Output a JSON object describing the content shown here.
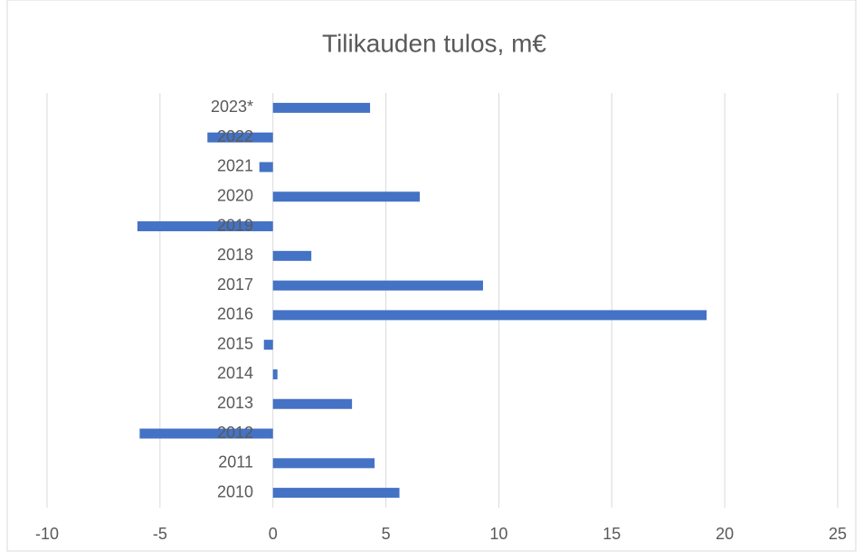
{
  "chart_data": {
    "type": "hbar",
    "title": "Tilikauden tulos, m€",
    "categories": [
      "2010",
      "2011",
      "2012",
      "2013",
      "2014",
      "2015",
      "2016",
      "2017",
      "2018",
      "2019",
      "2020",
      "2021",
      "2022",
      "2023*"
    ],
    "values": [
      5.6,
      4.5,
      -5.9,
      3.5,
      0.2,
      -0.4,
      19.2,
      9.3,
      1.7,
      -6.0,
      6.5,
      -0.6,
      -2.9,
      4.3
    ],
    "color": "#4472c4",
    "xlim": [
      -10,
      25
    ],
    "xticks": [
      -10,
      -5,
      0,
      5,
      10,
      15,
      20,
      25
    ],
    "grid": true
  }
}
